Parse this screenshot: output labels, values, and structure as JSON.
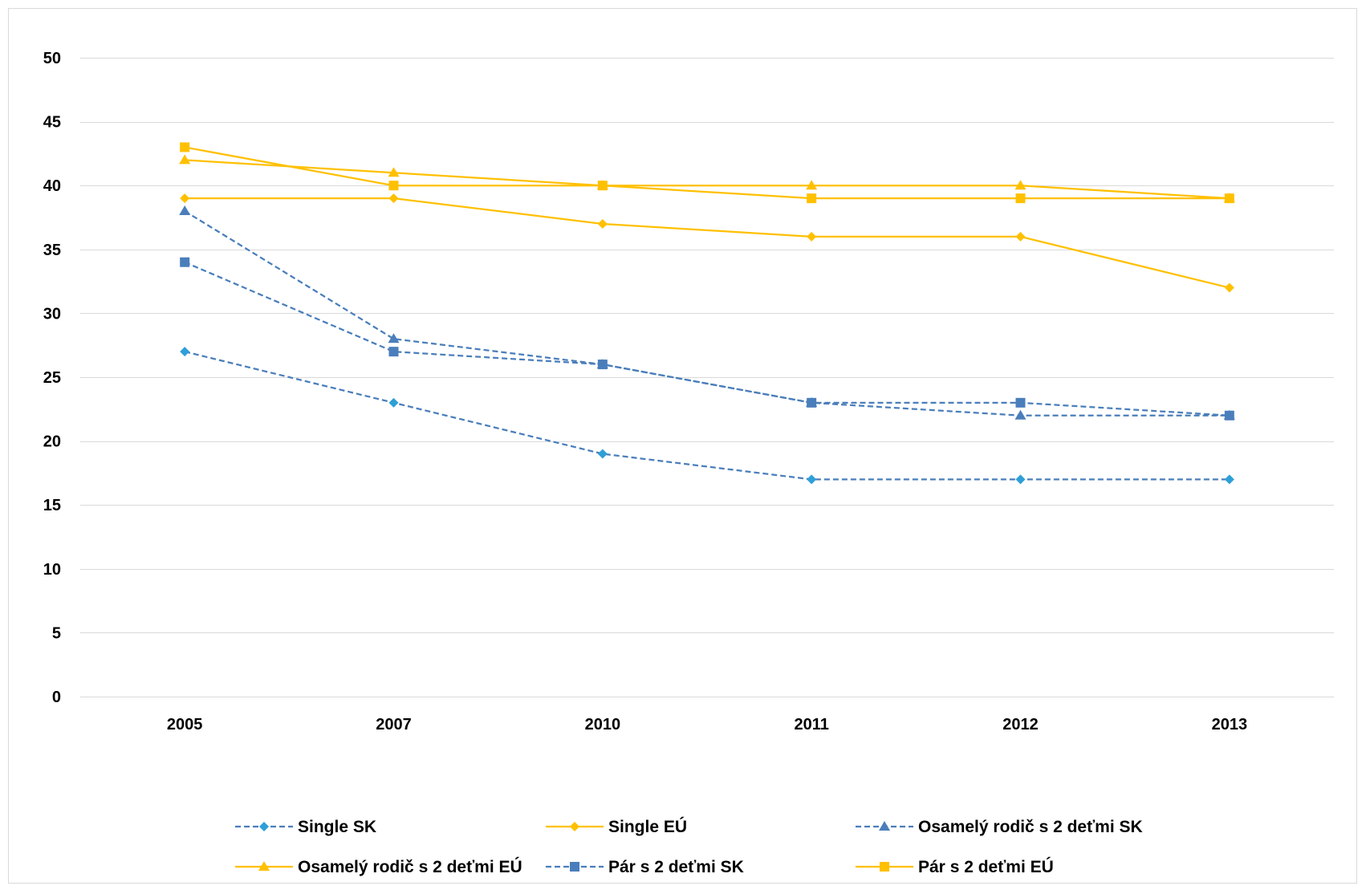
{
  "chart_data": {
    "type": "line",
    "title": "",
    "xlabel": "",
    "ylabel": "",
    "categories": [
      "2005",
      "2007",
      "2010",
      "2011",
      "2012",
      "2013"
    ],
    "ylim": [
      0,
      50
    ],
    "yticks": [
      0,
      5,
      10,
      15,
      20,
      25,
      30,
      35,
      40,
      45,
      50
    ],
    "grid": "horizontal",
    "legend_position": "bottom",
    "series": [
      {
        "name": "Single SK",
        "values": [
          27,
          23,
          19,
          17,
          17,
          17
        ],
        "color": "#4a7ebb",
        "line": "dashed",
        "marker": "diamond",
        "marker_color": "#2e9fd8"
      },
      {
        "name": "Single EÚ",
        "values": [
          39,
          39,
          37,
          36,
          36,
          32
        ],
        "color": "#ffc000",
        "line": "solid",
        "marker": "diamond",
        "marker_color": "#ffc000"
      },
      {
        "name": "Osamelý rodič s 2 deťmi SK",
        "values": [
          38,
          28,
          26,
          23,
          22,
          22
        ],
        "color": "#4a7ebb",
        "line": "dashed",
        "marker": "triangle",
        "marker_color": "#4a7ebb"
      },
      {
        "name": "Osamelý rodič s 2 deťmi EÚ",
        "values": [
          42,
          41,
          40,
          40,
          40,
          39
        ],
        "color": "#ffc000",
        "line": "solid",
        "marker": "triangle",
        "marker_color": "#ffc000"
      },
      {
        "name": "Pár s 2 deťmi SK",
        "values": [
          34,
          27,
          26,
          23,
          23,
          22
        ],
        "color": "#4a7ebb",
        "line": "dashed",
        "marker": "square",
        "marker_color": "#4a7ebb"
      },
      {
        "name": "Pár s 2 deťmi EÚ",
        "values": [
          43,
          40,
          40,
          39,
          39,
          39
        ],
        "color": "#ffc000",
        "line": "solid",
        "marker": "square",
        "marker_color": "#ffc000"
      }
    ]
  }
}
